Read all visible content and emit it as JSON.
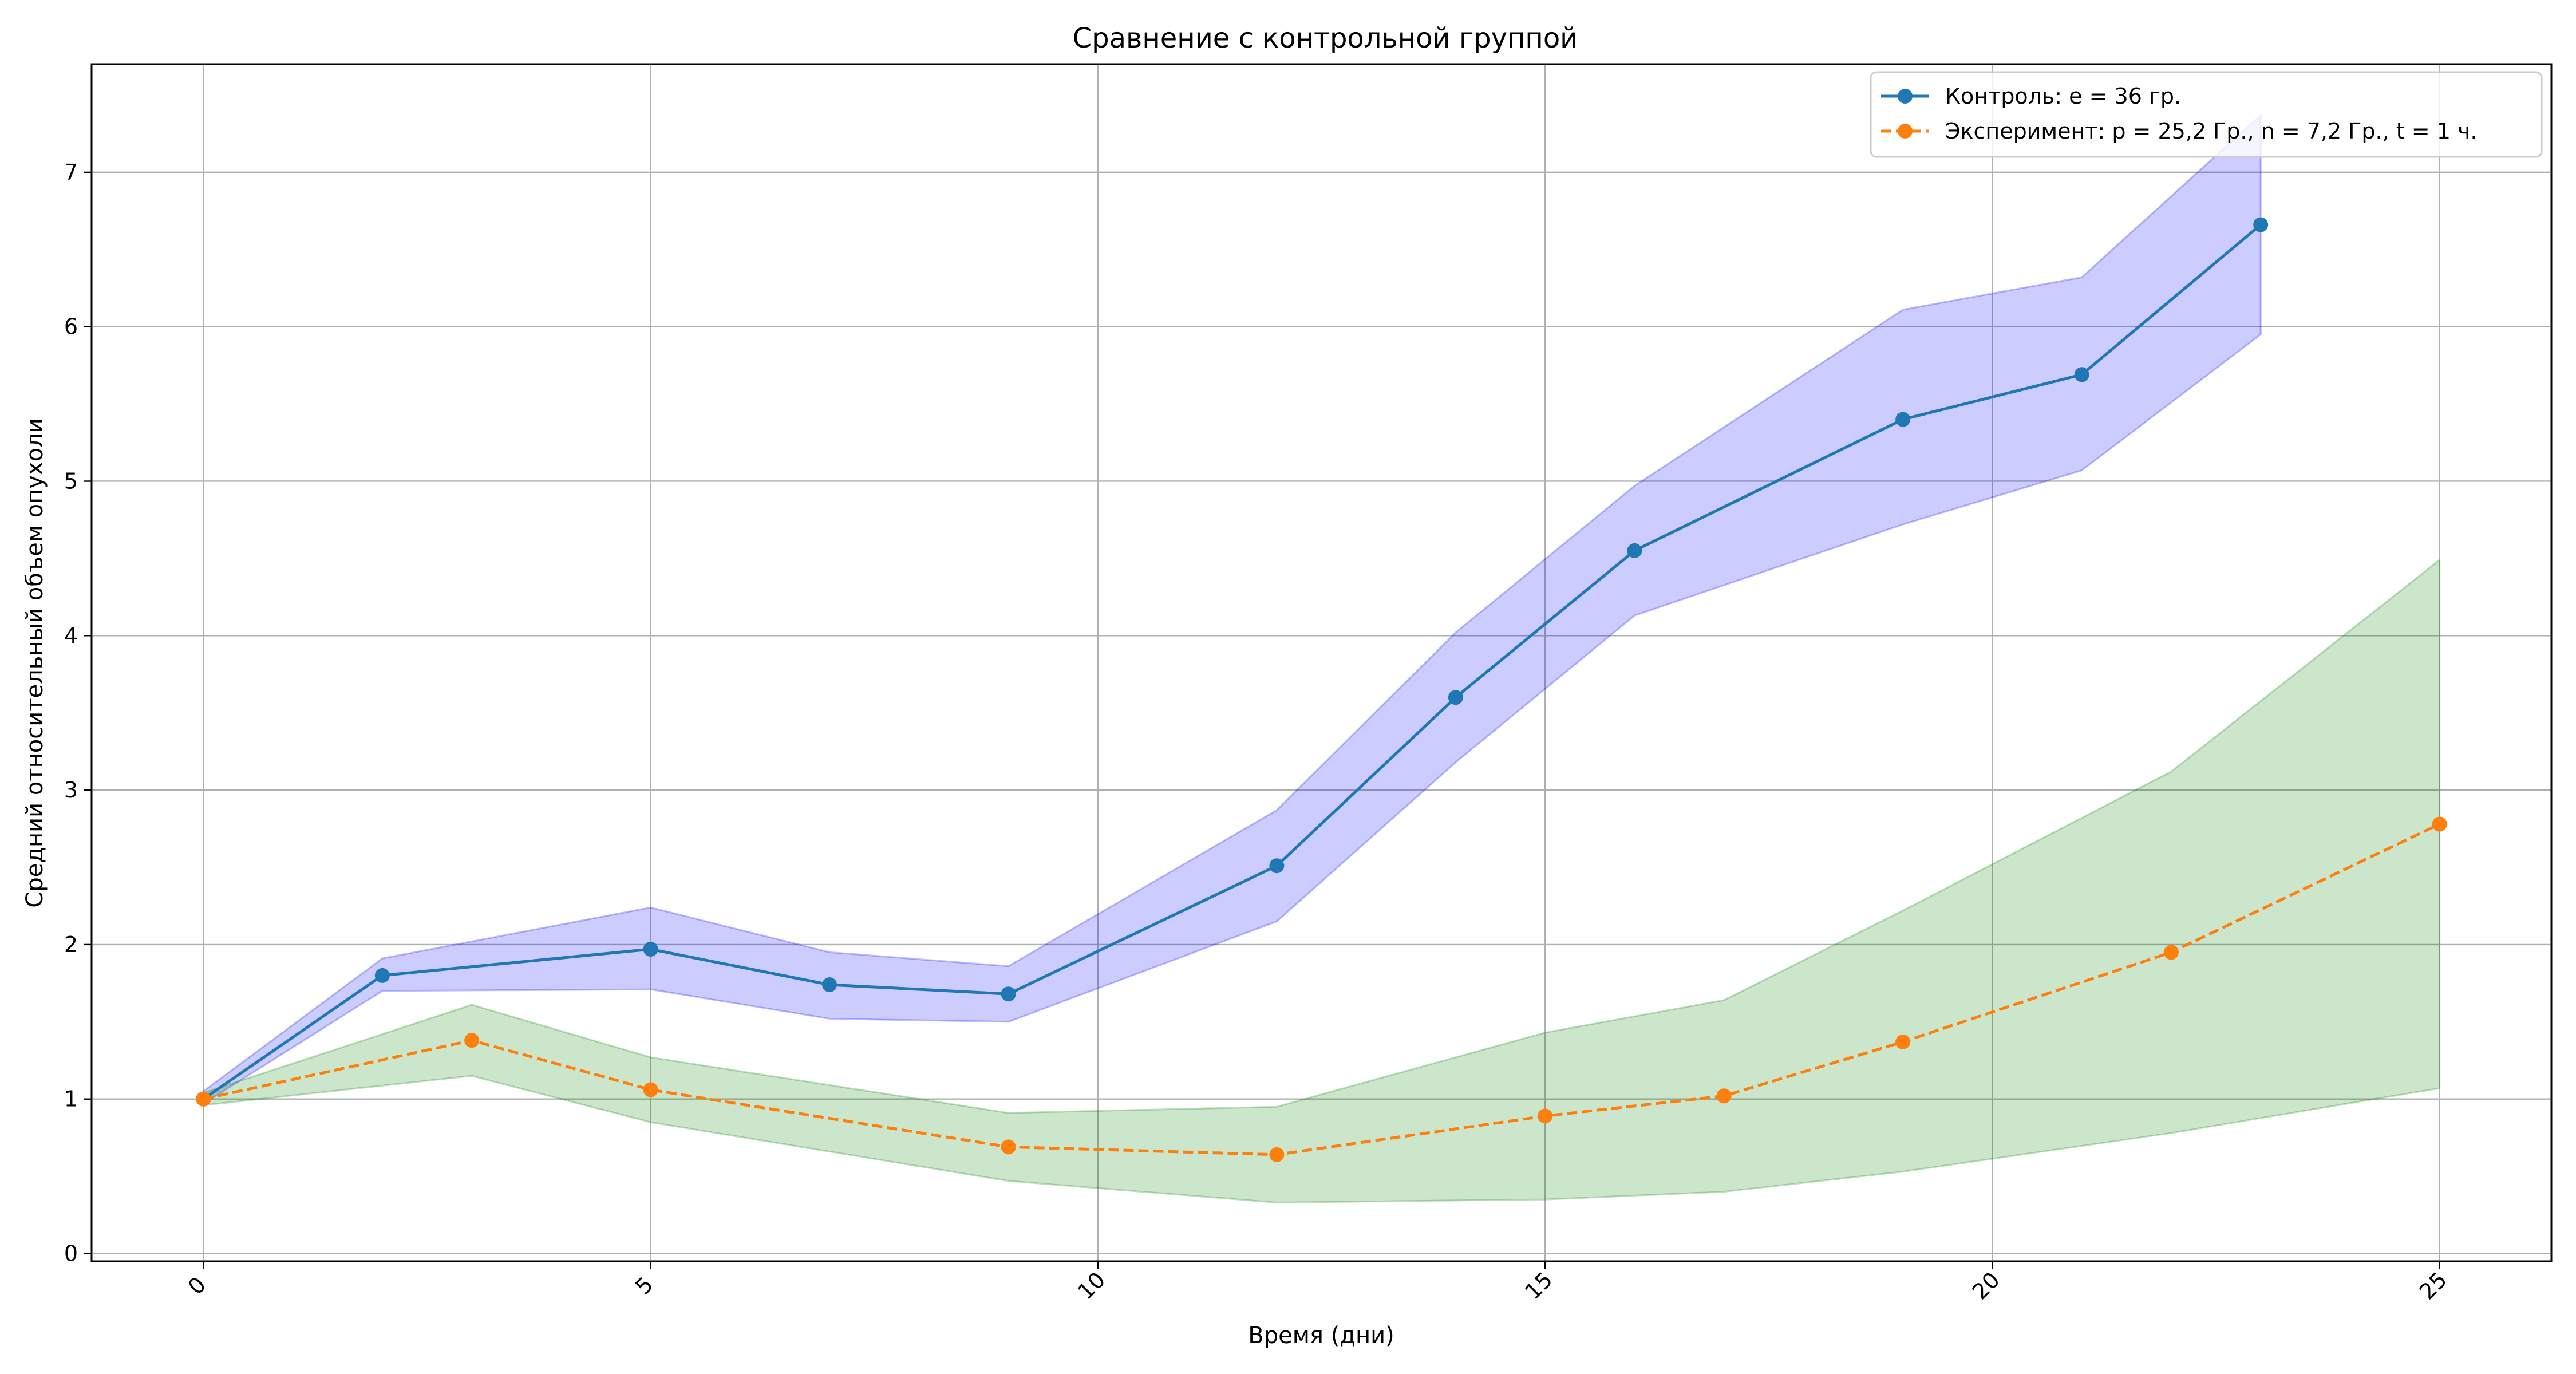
{
  "chart_data": {
    "type": "line",
    "title": "Сравнение с контрольной группой",
    "xlabel": "Время (дни)",
    "ylabel": "Средний относительный объем опухоли",
    "xlim": [
      -1.25,
      26.25
    ],
    "ylim": [
      -0.05,
      7.7
    ],
    "xticks": [
      0,
      5,
      10,
      15,
      20,
      25
    ],
    "yticks": [
      0,
      1,
      2,
      3,
      4,
      5,
      6,
      7
    ],
    "grid": true,
    "legend_position": "top-right",
    "series": [
      {
        "name": "Контроль: e = 36 гр.",
        "color": "#1f77b4",
        "line_style": "solid",
        "marker": "circle",
        "x": [
          0,
          2,
          5,
          7,
          9,
          12,
          14,
          16,
          19,
          21,
          23
        ],
        "y": [
          1.0,
          1.8,
          1.97,
          1.74,
          1.68,
          2.51,
          3.6,
          4.55,
          5.4,
          5.69,
          6.66
        ],
        "band_color": "#0000ff",
        "band_opacity": 0.2,
        "band_lower": [
          0.97,
          1.7,
          1.71,
          1.52,
          1.5,
          2.15,
          3.18,
          4.13,
          4.72,
          5.07,
          5.95
        ],
        "band_upper": [
          1.05,
          1.91,
          2.24,
          1.95,
          1.86,
          2.87,
          4.02,
          4.97,
          6.11,
          6.32,
          7.37
        ]
      },
      {
        "name": "Эксперимент: p = 25,2 Гр., n = 7,2 Гр., t = 1 ч.",
        "color": "#ff7f0e",
        "line_style": "dashed",
        "marker": "circle",
        "x": [
          0,
          3,
          5,
          9,
          12,
          15,
          17,
          19,
          22,
          25
        ],
        "y": [
          1.0,
          1.38,
          1.06,
          0.69,
          0.64,
          0.89,
          1.02,
          1.37,
          1.95,
          2.78
        ],
        "band_color": "#008000",
        "band_opacity": 0.2,
        "band_lower": [
          0.96,
          1.15,
          0.85,
          0.47,
          0.33,
          0.35,
          0.4,
          0.53,
          0.78,
          1.07
        ],
        "band_upper": [
          1.04,
          1.61,
          1.27,
          0.91,
          0.95,
          1.43,
          1.64,
          2.22,
          3.12,
          4.49
        ]
      }
    ]
  }
}
